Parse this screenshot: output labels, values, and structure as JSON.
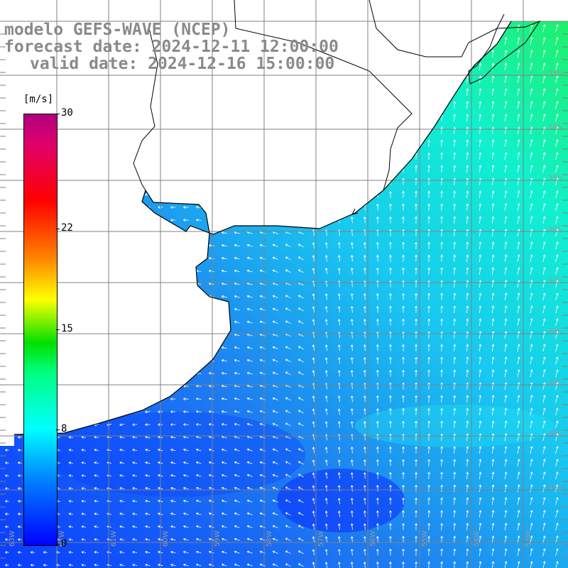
{
  "title": {
    "line1": "modelo GEFS-WAVE (NCEP)",
    "line2": "forecast date: 2024-12-11 12:00:00",
    "line3": "valid date: 2024-12-16 15:00:00"
  },
  "colorbar": {
    "units": "[m/s]",
    "ticks": [
      "30",
      "22",
      "15",
      "8",
      "0"
    ],
    "tick_values": [
      30,
      22,
      15,
      8,
      0
    ],
    "range": [
      0,
      30
    ],
    "colors": [
      "#0000ff",
      "#0080ff",
      "#00ffff",
      "#00ff80",
      "#00e000",
      "#ffff00",
      "#ff8000",
      "#ff0000",
      "#e0006a",
      "#b00080"
    ]
  },
  "map": {
    "lat_labels": [
      "33S",
      "34S",
      "35S",
      "36S",
      "37S",
      "38S",
      "39S",
      "40S",
      "41S"
    ],
    "lon_labels": [
      "63W",
      "62W",
      "61W",
      "60W",
      "59W",
      "58W",
      "57W",
      "56W",
      "55W",
      "54W",
      "53W"
    ],
    "land_color": "#ffffff",
    "grid_color": "#808080",
    "arrow_color": "#ffffff",
    "coastline_color": "#000000"
  }
}
